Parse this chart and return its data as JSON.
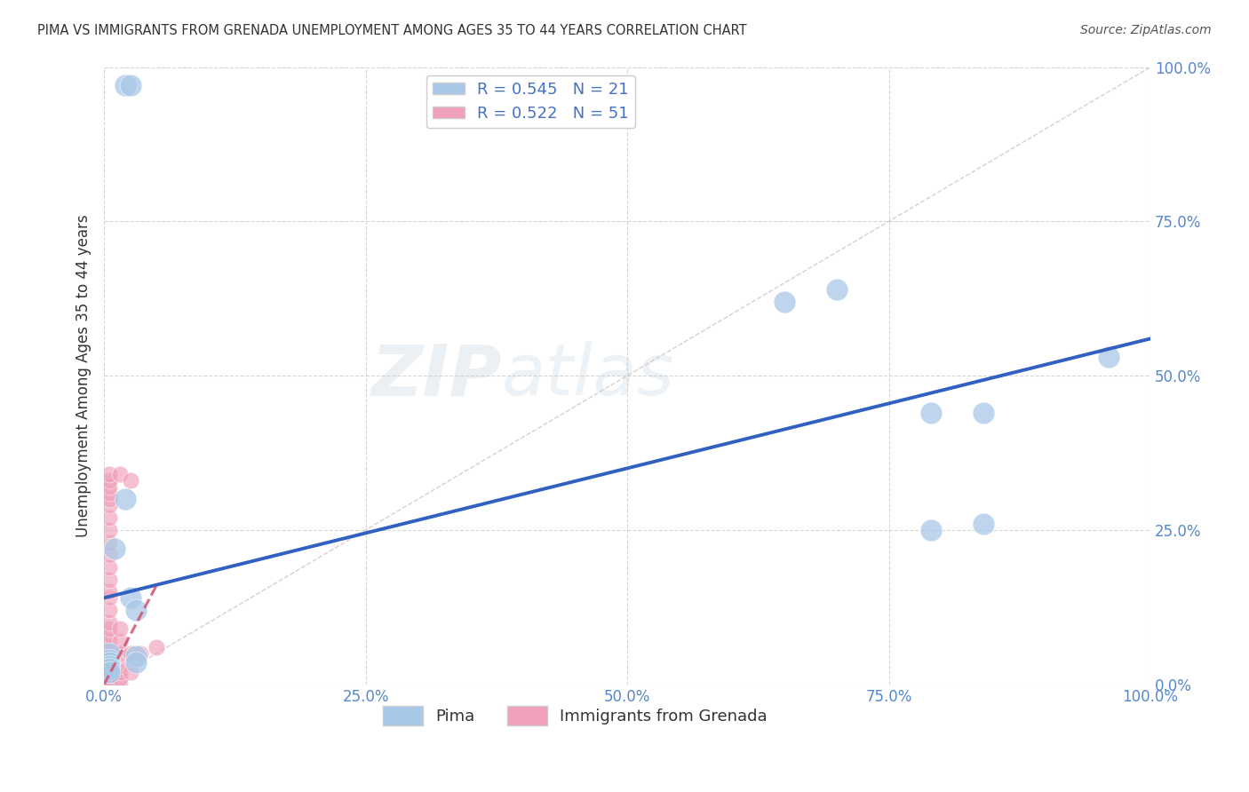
{
  "title": "PIMA VS IMMIGRANTS FROM GRENADA UNEMPLOYMENT AMONG AGES 35 TO 44 YEARS CORRELATION CHART",
  "source": "Source: ZipAtlas.com",
  "ylabel": "Unemployment Among Ages 35 to 44 years",
  "legend_bottom": [
    "Pima",
    "Immigrants from Grenada"
  ],
  "pima_R": 0.545,
  "pima_N": 21,
  "grenada_R": 0.522,
  "grenada_N": 51,
  "xlim": [
    0,
    1.0
  ],
  "ylim": [
    0,
    1.0
  ],
  "xticks": [
    0.0,
    0.25,
    0.5,
    0.75,
    1.0
  ],
  "yticks": [
    0.0,
    0.25,
    0.5,
    0.75,
    1.0
  ],
  "xtick_labels": [
    "0.0%",
    "25.0%",
    "50.0%",
    "75.0%",
    "100.0%"
  ],
  "ytick_labels": [
    "0.0%",
    "25.0%",
    "50.0%",
    "75.0%",
    "100.0%"
  ],
  "pima_color": "#A8C8E8",
  "grenada_color": "#F0A0B8",
  "trendline_pima_color": "#3060C0",
  "trendline_grenada_color": "#D05070",
  "diagonal_color": "#D8C8C8",
  "background_color": "#FFFFFF",
  "watermark_zip": "ZIP",
  "watermark_atlas": "atlas",
  "pima_x": [
    0.02,
    0.02,
    0.025,
    0.01,
    0.005,
    0.005,
    0.005,
    0.005,
    0.005,
    0.005,
    0.03,
    0.03,
    0.03,
    0.65,
    0.7,
    0.79,
    0.84,
    0.84,
    0.79,
    0.96,
    0.025
  ],
  "pima_y": [
    0.97,
    0.3,
    0.14,
    0.22,
    0.05,
    0.04,
    0.035,
    0.03,
    0.025,
    0.02,
    0.12,
    0.045,
    0.035,
    0.62,
    0.64,
    0.25,
    0.26,
    0.44,
    0.44,
    0.53,
    0.97
  ],
  "grenada_x": [
    0.005,
    0.005,
    0.005,
    0.005,
    0.005,
    0.005,
    0.005,
    0.005,
    0.005,
    0.005,
    0.005,
    0.005,
    0.005,
    0.005,
    0.005,
    0.005,
    0.005,
    0.005,
    0.005,
    0.005,
    0.005,
    0.005,
    0.005,
    0.005,
    0.005,
    0.005,
    0.005,
    0.005,
    0.005,
    0.005,
    0.005,
    0.005,
    0.005,
    0.005,
    0.005,
    0.005,
    0.005,
    0.005,
    0.015,
    0.015,
    0.015,
    0.015,
    0.015,
    0.015,
    0.015,
    0.015,
    0.025,
    0.025,
    0.025,
    0.035,
    0.05
  ],
  "grenada_y": [
    0.0,
    0.0,
    0.0,
    0.0,
    0.0,
    0.0,
    0.005,
    0.005,
    0.01,
    0.01,
    0.015,
    0.015,
    0.02,
    0.02,
    0.025,
    0.035,
    0.04,
    0.05,
    0.06,
    0.07,
    0.08,
    0.09,
    0.1,
    0.12,
    0.14,
    0.15,
    0.17,
    0.19,
    0.21,
    0.23,
    0.25,
    0.27,
    0.29,
    0.3,
    0.31,
    0.32,
    0.33,
    0.34,
    0.0,
    0.01,
    0.02,
    0.03,
    0.05,
    0.07,
    0.09,
    0.34,
    0.02,
    0.05,
    0.33,
    0.05,
    0.06
  ],
  "trendline_pima": [
    0.0,
    1.0,
    0.14,
    0.56
  ],
  "trendline_grenada": [
    0.0,
    0.05,
    0.0,
    0.16
  ]
}
